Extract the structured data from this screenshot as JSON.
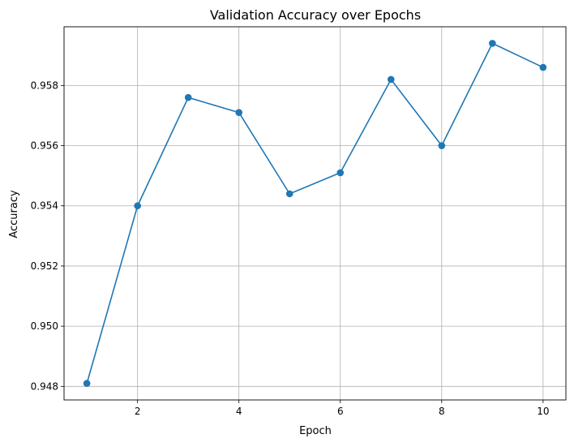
{
  "chart_data": {
    "type": "line",
    "title": "Validation Accuracy over Epochs",
    "xlabel": "Epoch",
    "ylabel": "Accuracy",
    "x": [
      1,
      2,
      3,
      4,
      5,
      6,
      7,
      8,
      9,
      10
    ],
    "series": [
      {
        "name": "Validation Accuracy",
        "values": [
          0.9481,
          0.954,
          0.9576,
          0.9571,
          0.9544,
          0.9551,
          0.9582,
          0.956,
          0.9594,
          0.9586
        ],
        "color": "#1f77b4",
        "marker": "circle"
      }
    ],
    "xlim": [
      0.55,
      10.45
    ],
    "ylim": [
      0.94755,
      0.95995
    ],
    "xticks": [
      2,
      4,
      6,
      8,
      10
    ],
    "xtick_labels": [
      "2",
      "4",
      "6",
      "8",
      "10"
    ],
    "yticks": [
      0.948,
      0.95,
      0.952,
      0.954,
      0.956,
      0.958
    ],
    "ytick_labels": [
      "0.948",
      "0.950",
      "0.952",
      "0.954",
      "0.956",
      "0.958"
    ],
    "grid": true,
    "legend": "none"
  }
}
